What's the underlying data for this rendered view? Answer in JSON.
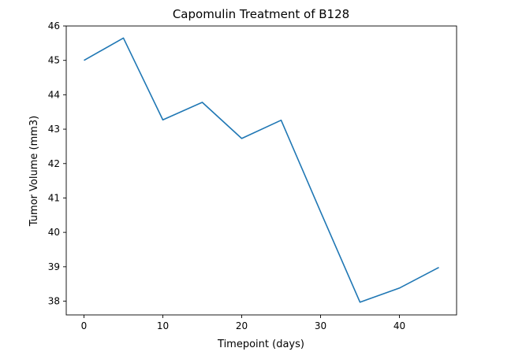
{
  "chart_data": {
    "type": "line",
    "title": "Capomulin Treatment of B128",
    "xlabel": "Timepoint (days)",
    "ylabel": "Tumor Volume (mm3)",
    "xlim": [
      -2.25,
      47.25
    ],
    "ylim": [
      37.6,
      46.0
    ],
    "xticks": [
      0,
      10,
      20,
      30,
      40
    ],
    "yticks": [
      38,
      39,
      40,
      41,
      42,
      43,
      44,
      45,
      46
    ],
    "grid": false,
    "line_color": "#1f77b4",
    "series": [
      {
        "x": [
          0,
          5,
          10,
          15,
          20,
          25,
          30,
          35,
          40,
          45
        ],
        "values": [
          45.0,
          45.65,
          43.27,
          43.78,
          42.73,
          43.26,
          40.6,
          37.97,
          38.38,
          38.98
        ]
      }
    ]
  }
}
